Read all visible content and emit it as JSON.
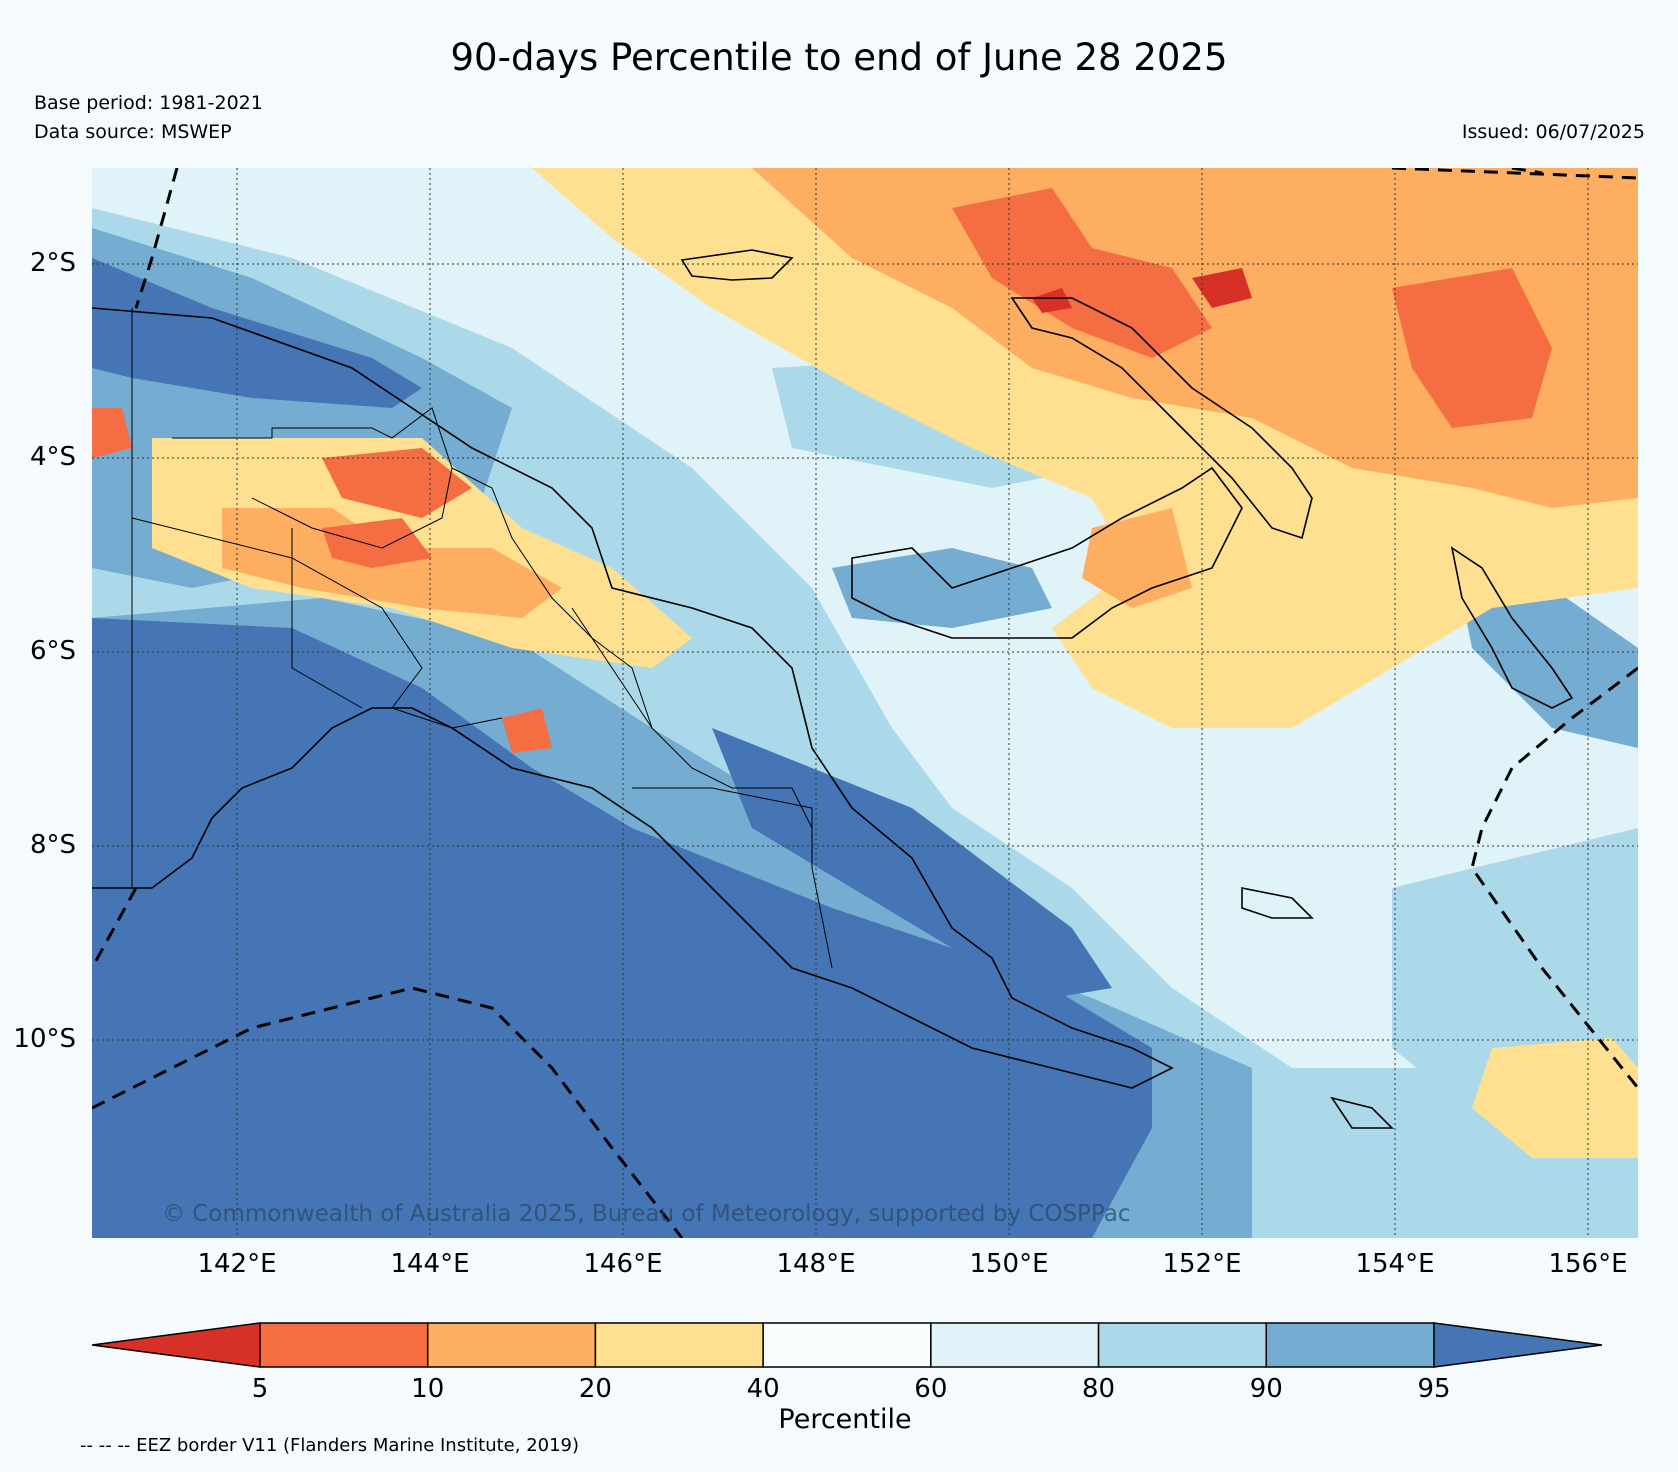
{
  "title": "90-days Percentile to end of June 28 2025",
  "base_period": "Base period: 1981-2021",
  "data_source": "Data source: MSWEP",
  "issued": "Issued: 06/07/2025",
  "copyright": "© Commonwealth of Australia 2025, Bureau of Meteorology, supported by COSPPac",
  "footnote": "-- -- -- EEZ border V11 (Flanders Marine Institute, 2019)",
  "map": {
    "lon_range": [
      140.5,
      156.5
    ],
    "lat_range": [
      -12.0,
      -1.0
    ],
    "lat_ticks": [
      "2°S",
      "4°S",
      "6°S",
      "8°S",
      "10°S"
    ],
    "lon_ticks": [
      "142°E",
      "144°E",
      "146°E",
      "148°E",
      "150°E",
      "152°E",
      "154°E",
      "156°E"
    ],
    "grid": "dotted"
  },
  "colorbar": {
    "title": "Percentile",
    "ticks": [
      "5",
      "10",
      "20",
      "40",
      "60",
      "80",
      "90",
      "95"
    ],
    "colors": [
      "#d73027",
      "#f46d43",
      "#fdae61",
      "#fee090",
      "#f7fcfd",
      "#e0f3f8",
      "#abd9e9",
      "#74add1",
      "#4575b4"
    ]
  }
}
